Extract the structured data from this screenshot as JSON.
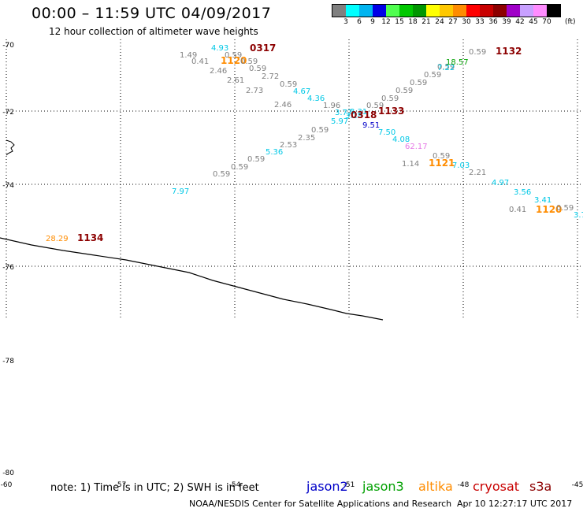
{
  "header": {
    "title": "00:00 – 11:59 UTC 04/09/2017",
    "subtitle": "12 hour collection of altimeter wave heights"
  },
  "colorbar": {
    "unit": "(ft)",
    "swatches": [
      "#808080",
      "#00ffff",
      "#00b4f0",
      "#0000e6",
      "#50ff50",
      "#00c800",
      "#009600",
      "#ffff00",
      "#ffc800",
      "#ff8c00",
      "#ff0000",
      "#c80000",
      "#8c0000",
      "#a000c8",
      "#c8a0ff",
      "#ff8cff",
      "#000000"
    ],
    "labels": [
      "3",
      "6",
      "9",
      "12",
      "15",
      "18",
      "21",
      "24",
      "27",
      "30",
      "33",
      "36",
      "39",
      "42",
      "45",
      "70"
    ]
  },
  "map": {
    "lat_labels": [
      "-70",
      "-72",
      "-74",
      "-76",
      "-78",
      "-80"
    ],
    "bottom_lon_labels": [
      "-60",
      "-57",
      "-54",
      "-51",
      "-48",
      "-45"
    ],
    "points": [
      {
        "t": "1.49",
        "c": "#808080"
      },
      {
        "t": "0.41",
        "c": "#808080"
      },
      {
        "t": "2.46",
        "c": "#808080"
      },
      {
        "t": "4.93",
        "c": "#00c8e6"
      },
      {
        "t": "0.59",
        "c": "#808080"
      },
      {
        "t": "1120",
        "c": "#ff8c00"
      },
      {
        "t": "0.59",
        "c": "#808080"
      },
      {
        "t": "0317",
        "c": "#8c0000"
      },
      {
        "t": "2.61",
        "c": "#808080"
      },
      {
        "t": "0.59",
        "c": "#808080"
      },
      {
        "t": "2.72",
        "c": "#808080"
      },
      {
        "t": "2.73",
        "c": "#808080"
      },
      {
        "t": "0.59",
        "c": "#808080"
      },
      {
        "t": "4.67",
        "c": "#00c8e6"
      },
      {
        "t": "4.36",
        "c": "#00c8e6"
      },
      {
        "t": "2.46",
        "c": "#808080"
      },
      {
        "t": "1.96",
        "c": "#808080"
      },
      {
        "t": "3.77",
        "c": "#00c8e6"
      },
      {
        "t": "3.31",
        "c": "#00c8e6"
      },
      {
        "t": "3.28",
        "c": "#00c8e6"
      },
      {
        "t": "5.97",
        "c": "#00c8e6"
      },
      {
        "t": "0.59",
        "c": "#808080"
      },
      {
        "t": "1133",
        "c": "#8c0000"
      },
      {
        "t": "0318",
        "c": "#8c0000"
      },
      {
        "t": "9.51",
        "c": "#0000c8"
      },
      {
        "t": "7.50",
        "c": "#00c8e6"
      },
      {
        "t": "4.08",
        "c": "#00c8e6"
      },
      {
        "t": "62.17",
        "c": "#e678e6"
      },
      {
        "t": "0.59",
        "c": "#808080"
      },
      {
        "t": "0.59",
        "c": "#808080"
      },
      {
        "t": "0.59",
        "c": "#808080"
      },
      {
        "t": "0.59",
        "c": "#808080"
      },
      {
        "t": "0.59",
        "c": "#808080"
      },
      {
        "t": "7.22",
        "c": "#00c8e6"
      },
      {
        "t": "18.57",
        "c": "#00a000"
      },
      {
        "t": "0.59",
        "c": "#808080"
      },
      {
        "t": "1132",
        "c": "#8c0000"
      },
      {
        "t": "2.35",
        "c": "#808080"
      },
      {
        "t": "2.53",
        "c": "#808080"
      },
      {
        "t": "0.59",
        "c": "#808080"
      },
      {
        "t": "5.36",
        "c": "#00c8e6"
      },
      {
        "t": "0.59",
        "c": "#808080"
      },
      {
        "t": "0.59",
        "c": "#808080"
      },
      {
        "t": "0.59",
        "c": "#808080"
      },
      {
        "t": "7.97",
        "c": "#00c8e6"
      },
      {
        "t": "1.14",
        "c": "#808080"
      },
      {
        "t": "1121",
        "c": "#ff8c00"
      },
      {
        "t": "0.59",
        "c": "#808080"
      },
      {
        "t": "7.03",
        "c": "#00c8e6"
      },
      {
        "t": "2.21",
        "c": "#808080"
      },
      {
        "t": "4.97",
        "c": "#00c8e6"
      },
      {
        "t": "3.56",
        "c": "#00c8e6"
      },
      {
        "t": "3.41",
        "c": "#00c8e6"
      },
      {
        "t": "0.41",
        "c": "#808080"
      },
      {
        "t": "1120",
        "c": "#ff8c00"
      },
      {
        "t": "0.59",
        "c": "#808080"
      },
      {
        "t": "3.7",
        "c": "#00c8e6"
      },
      {
        "t": "28.29",
        "c": "#ff8c00"
      },
      {
        "t": "1134",
        "c": "#8c0000"
      }
    ]
  },
  "footer": {
    "note": "note: 1) Time is in UTC; 2) SWH is in feet",
    "legend": [
      {
        "name": "jason2",
        "color": "#0000c8"
      },
      {
        "name": "jason3",
        "color": "#00a000"
      },
      {
        "name": "altika",
        "color": "#ff8c00"
      },
      {
        "name": "cryosat",
        "color": "#c80000"
      },
      {
        "name": "s3a",
        "color": "#8c0000"
      }
    ],
    "credit": "NOAA/NESDIS Center for Satellite Applications and Research",
    "timestamp": "Apr 10 12:27:17 UTC 2017"
  }
}
